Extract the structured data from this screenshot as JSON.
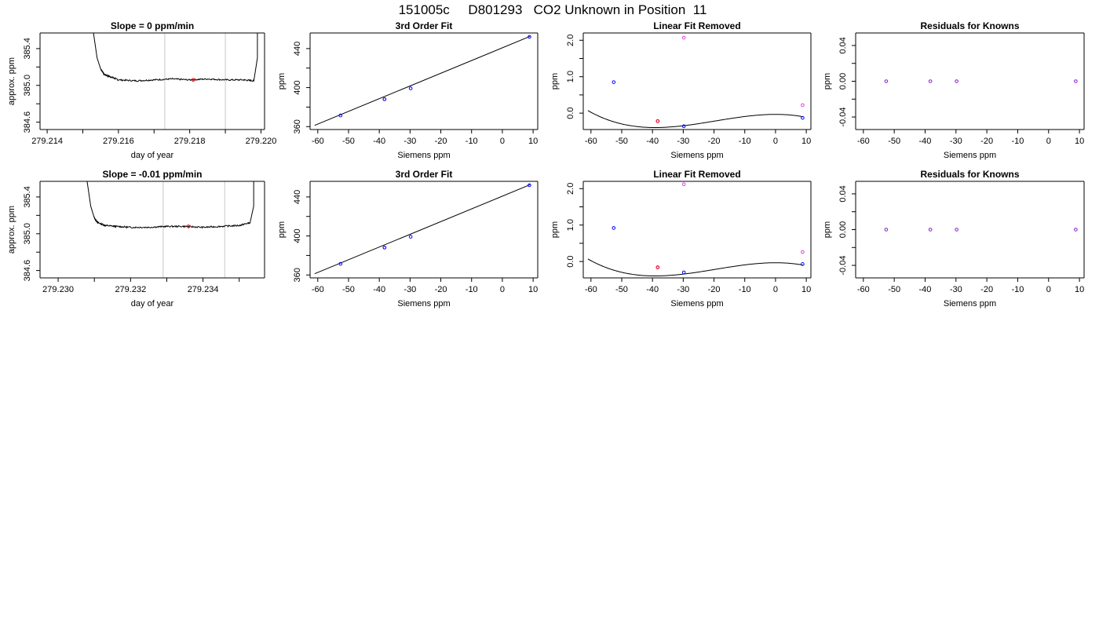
{
  "page_title": "151005c     D801293   CO2 Unknown in Position  11",
  "colors": {
    "axis": "#000000",
    "trace": "#000000",
    "marker_vline": "#c8c8c8",
    "point_blue": "#0000ff",
    "point_red": "#ff0000",
    "point_magenta": "#e040e0",
    "point_purple": "#8020c0"
  },
  "chart_data": [
    {
      "type": "line",
      "title": "Slope =  0  ppm/min",
      "xlabel": "day of year",
      "ylabel": "approx. ppm",
      "xlim": [
        279.2138,
        279.2201
      ],
      "ylim": [
        384.52,
        385.57
      ],
      "xticks": [
        279.214,
        279.215,
        279.216,
        279.217,
        279.218,
        279.219,
        279.22
      ],
      "xtick_labels": [
        "279.214",
        "",
        "279.216",
        "",
        "279.218",
        "",
        "279.220"
      ],
      "yticks": [
        384.6,
        384.8,
        385.0,
        385.2,
        385.4
      ],
      "ytick_labels": [
        "384.6",
        "",
        "385.0",
        "",
        "385.4"
      ],
      "vlines": [
        279.2173,
        279.219
      ],
      "trace": {
        "x": [
          279.2153,
          279.2154,
          279.2155,
          279.2156,
          279.2158,
          279.216,
          279.2165,
          279.217,
          279.2175,
          279.218,
          279.2185,
          279.219,
          279.2195,
          279.2198,
          279.2199,
          279.2199
        ],
        "y": [
          385.57,
          385.3,
          385.18,
          385.12,
          385.09,
          385.06,
          385.05,
          385.06,
          385.07,
          385.06,
          385.07,
          385.06,
          385.06,
          385.05,
          385.3,
          385.57
        ],
        "noise": 0.008,
        "seed": 7
      },
      "points": [
        {
          "x": 279.2181,
          "y": 385.06,
          "color": "#ff0000"
        }
      ]
    },
    {
      "type": "line",
      "title": "3rd Order Fit",
      "xlabel": "Siemens ppm",
      "ylabel": "ppm",
      "xlim": [
        -62.5,
        11.5
      ],
      "ylim": [
        357,
        456
      ],
      "xticks": [
        -60,
        -50,
        -40,
        -30,
        -20,
        -10,
        0,
        10
      ],
      "xtick_labels": [
        "-60",
        "-50",
        "-40",
        "-30",
        "-20",
        "-10",
        "0",
        "10"
      ],
      "yticks": [
        360,
        380,
        400,
        420,
        440
      ],
      "ytick_labels": [
        "360",
        "",
        "400",
        "",
        "440"
      ],
      "line": {
        "x": [
          -61,
          9
        ],
        "y": [
          361.3,
          452.5
        ]
      },
      "points": [
        {
          "x": -52.6,
          "y": 371.4,
          "color": "#0000ff"
        },
        {
          "x": -38.3,
          "y": 388.1,
          "color": "#ff0000"
        },
        {
          "x": -38.3,
          "y": 388.1,
          "color": "#0000ff"
        },
        {
          "x": -29.8,
          "y": 399.2,
          "color": "#0000ff"
        },
        {
          "x": 8.8,
          "y": 452.0,
          "color": "#0000ff"
        }
      ]
    },
    {
      "type": "line",
      "title": "Linear Fit Removed",
      "xlabel": "Siemens ppm",
      "ylabel": "ppm",
      "xlim": [
        -62.5,
        11.5
      ],
      "ylim": [
        -0.45,
        2.2
      ],
      "xticks": [
        -60,
        -50,
        -40,
        -30,
        -20,
        -10,
        0,
        10
      ],
      "xtick_labels": [
        "-60",
        "-50",
        "-40",
        "-30",
        "-20",
        "-10",
        "0",
        "10"
      ],
      "yticks": [
        0.0,
        0.5,
        1.0,
        1.5,
        2.0
      ],
      "ytick_labels": [
        "0.0",
        "",
        "1.0",
        "",
        "2.0"
      ],
      "curve": {
        "coeffs": [
          -1.21e-05,
          -0.00071,
          0.0,
          -0.034
        ],
        "xmin": -61,
        "xmax": 9
      },
      "points": [
        {
          "x": -52.6,
          "y": 0.85,
          "color": "#0000ff"
        },
        {
          "x": -38.3,
          "y": -0.22,
          "color": "#0000ff"
        },
        {
          "x": -38.3,
          "y": -0.22,
          "color": "#ff0000"
        },
        {
          "x": -29.8,
          "y": -0.36,
          "color": "#0000ff"
        },
        {
          "x": 8.8,
          "y": -0.13,
          "color": "#0000ff"
        },
        {
          "x": -29.8,
          "y": 2.07,
          "color": "#e040e0"
        },
        {
          "x": 8.8,
          "y": 0.22,
          "color": "#e040e0"
        }
      ]
    },
    {
      "type": "scatter",
      "title": "Residuals for Knowns",
      "xlabel": "Siemens ppm",
      "ylabel": "ppm",
      "xlim": [
        -62.5,
        11.5
      ],
      "ylim": [
        -0.054,
        0.054
      ],
      "xticks": [
        -60,
        -50,
        -40,
        -30,
        -20,
        -10,
        0,
        10
      ],
      "xtick_labels": [
        "-60",
        "-50",
        "-40",
        "-30",
        "-20",
        "-10",
        "0",
        "10"
      ],
      "yticks": [
        -0.04,
        -0.02,
        0.0,
        0.02,
        0.04
      ],
      "ytick_labels": [
        "-0.04",
        "",
        "0.00",
        "",
        "0.04"
      ],
      "points": [
        {
          "x": -52.6,
          "y": 0.0,
          "color": "#8020c0"
        },
        {
          "x": -38.3,
          "y": 0.0,
          "color": "#8020c0"
        },
        {
          "x": -29.8,
          "y": 0.0,
          "color": "#8020c0"
        },
        {
          "x": 8.8,
          "y": 0.0,
          "color": "#8020c0"
        }
      ]
    },
    {
      "type": "line",
      "title": "Slope =  -0.01  ppm/min",
      "xlabel": "day of year",
      "ylabel": "approx. ppm",
      "xlim": [
        229.2295,
        279.2357
      ],
      "ylim": [
        384.52,
        385.57
      ],
      "xticks": [
        279.23,
        279.231,
        279.232,
        279.233,
        279.234,
        279.235
      ],
      "xtick_labels": [
        "279.230",
        "",
        "279.232",
        "",
        "279.234",
        ""
      ],
      "yticks": [
        384.6,
        384.8,
        385.0,
        385.2,
        385.4
      ],
      "ytick_labels": [
        "384.6",
        "",
        "385.0",
        "",
        "385.4"
      ],
      "vlines": [
        279.2329,
        279.2346
      ],
      "trace": {
        "x": [
          279.2308,
          279.2309,
          279.231,
          279.2311,
          279.2313,
          279.2316,
          279.232,
          279.2325,
          279.233,
          279.2335,
          279.234,
          279.2345,
          279.235,
          279.2353,
          279.2354,
          279.2354
        ],
        "y": [
          385.57,
          385.3,
          385.17,
          385.12,
          385.09,
          385.08,
          385.07,
          385.07,
          385.08,
          385.08,
          385.07,
          385.08,
          385.09,
          385.12,
          385.3,
          385.57
        ],
        "noise": 0.008,
        "seed": 13
      },
      "points": [
        {
          "x": 279.2336,
          "y": 385.08,
          "color": "#ff0000"
        }
      ]
    },
    {
      "type": "line",
      "title": "3rd Order Fit",
      "xlabel": "Siemens ppm",
      "ylabel": "ppm",
      "xlim": [
        -62.5,
        11.5
      ],
      "ylim": [
        357,
        456
      ],
      "xticks": [
        -60,
        -50,
        -40,
        -30,
        -20,
        -10,
        0,
        10
      ],
      "xtick_labels": [
        "-60",
        "-50",
        "-40",
        "-30",
        "-20",
        "-10",
        "0",
        "10"
      ],
      "yticks": [
        360,
        380,
        400,
        420,
        440
      ],
      "ytick_labels": [
        "360",
        "",
        "400",
        "",
        "440"
      ],
      "line": {
        "x": [
          -61,
          9
        ],
        "y": [
          361.3,
          452.5
        ]
      },
      "points": [
        {
          "x": -52.6,
          "y": 371.4,
          "color": "#0000ff"
        },
        {
          "x": -38.3,
          "y": 388.1,
          "color": "#ff0000"
        },
        {
          "x": -38.3,
          "y": 388.1,
          "color": "#0000ff"
        },
        {
          "x": -29.8,
          "y": 399.2,
          "color": "#0000ff"
        },
        {
          "x": 8.8,
          "y": 452.0,
          "color": "#0000ff"
        }
      ]
    },
    {
      "type": "line",
      "title": "Linear Fit Removed",
      "xlabel": "Siemens ppm",
      "ylabel": "ppm",
      "xlim": [
        -62.5,
        11.5
      ],
      "ylim": [
        -0.45,
        2.2
      ],
      "xticks": [
        -60,
        -50,
        -40,
        -30,
        -20,
        -10,
        0,
        10
      ],
      "xtick_labels": [
        "-60",
        "-50",
        "-40",
        "-30",
        "-20",
        "-10",
        "0",
        "10"
      ],
      "yticks": [
        0.0,
        0.5,
        1.0,
        1.5,
        2.0
      ],
      "ytick_labels": [
        "0.0",
        "",
        "1.0",
        "",
        "2.0"
      ],
      "curve": {
        "coeffs": [
          -1.21e-05,
          -0.00071,
          0.0,
          -0.034
        ],
        "xmin": -61,
        "xmax": 9
      },
      "points": [
        {
          "x": -52.6,
          "y": 0.92,
          "color": "#0000ff"
        },
        {
          "x": -38.3,
          "y": -0.16,
          "color": "#0000ff"
        },
        {
          "x": -38.3,
          "y": -0.16,
          "color": "#ff0000"
        },
        {
          "x": -29.8,
          "y": -0.3,
          "color": "#0000ff"
        },
        {
          "x": 8.8,
          "y": -0.07,
          "color": "#0000ff"
        },
        {
          "x": -29.8,
          "y": 2.12,
          "color": "#e040e0"
        },
        {
          "x": 8.8,
          "y": 0.26,
          "color": "#e040e0"
        }
      ]
    },
    {
      "type": "scatter",
      "title": "Residuals for Knowns",
      "xlabel": "Siemens ppm",
      "ylabel": "ppm",
      "xlim": [
        -62.5,
        11.5
      ],
      "ylim": [
        -0.054,
        0.054
      ],
      "xticks": [
        -60,
        -50,
        -40,
        -30,
        -20,
        -10,
        0,
        10
      ],
      "xtick_labels": [
        "-60",
        "-50",
        "-40",
        "-30",
        "-20",
        "-10",
        "0",
        "10"
      ],
      "yticks": [
        -0.04,
        -0.02,
        0.0,
        0.02,
        0.04
      ],
      "ytick_labels": [
        "-0.04",
        "",
        "0.00",
        "",
        "0.04"
      ],
      "points": [
        {
          "x": -52.6,
          "y": 0.0,
          "color": "#8020c0"
        },
        {
          "x": -38.3,
          "y": 0.0,
          "color": "#8020c0"
        },
        {
          "x": -29.8,
          "y": 0.0,
          "color": "#8020c0"
        },
        {
          "x": 8.8,
          "y": 0.0,
          "color": "#8020c0"
        }
      ]
    }
  ]
}
